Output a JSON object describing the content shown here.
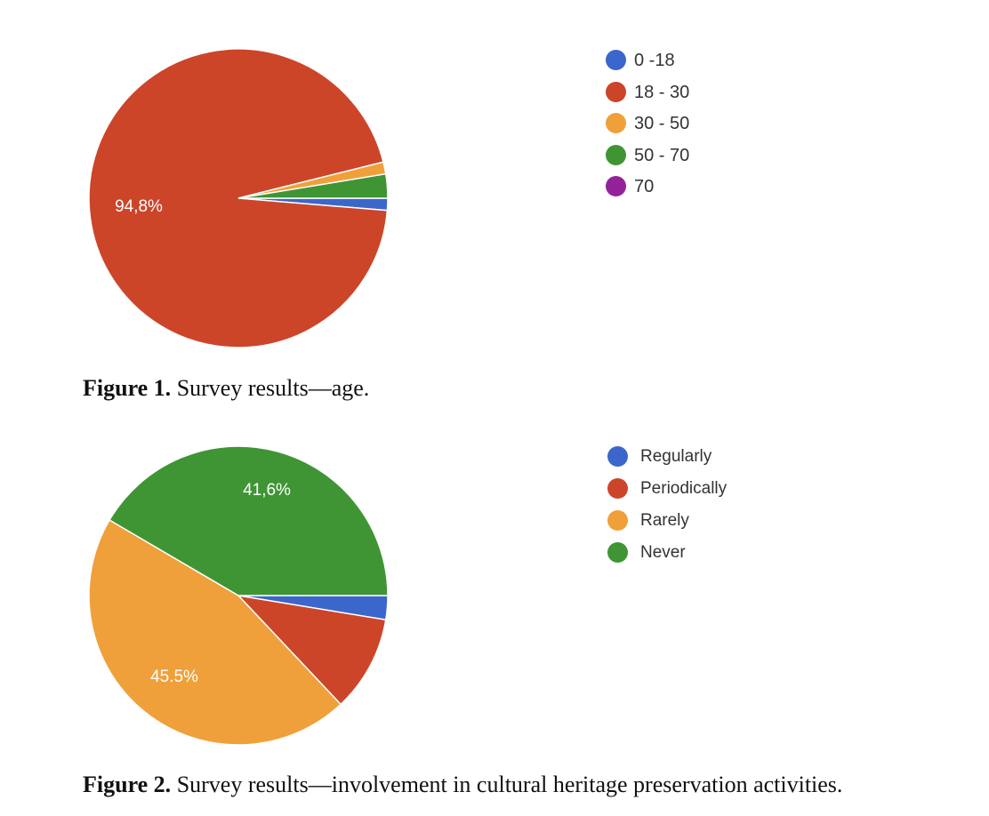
{
  "chart_data": [
    {
      "type": "pie",
      "title": "",
      "legend_position": "right",
      "slices": [
        {
          "label": "0 -18",
          "value": 1.3,
          "color": "#3b66cc"
        },
        {
          "label": "18 - 30",
          "value": 94.8,
          "color": "#cc4529"
        },
        {
          "label": "30 - 50",
          "value": 1.3,
          "color": "#f0a03a"
        },
        {
          "label": "50 - 70",
          "value": 2.6,
          "color": "#3f9534"
        },
        {
          "label": "70",
          "value": 0,
          "color": "#93229a"
        }
      ],
      "data_labels": [
        {
          "slice": "18 - 30",
          "text": "94,8%"
        }
      ]
    },
    {
      "type": "pie",
      "title": "",
      "legend_position": "right",
      "slices": [
        {
          "label": "Regularly",
          "value": 2.6,
          "color": "#3b66cc"
        },
        {
          "label": "Periodically",
          "value": 10.4,
          "color": "#cc4529"
        },
        {
          "label": "Rarely",
          "value": 45.5,
          "color": "#f0a03a"
        },
        {
          "label": "Never",
          "value": 41.6,
          "color": "#3f9534"
        }
      ],
      "data_labels": [
        {
          "slice": "Rarely",
          "text": "45.5%"
        },
        {
          "slice": "Never",
          "text": "41,6%"
        }
      ]
    }
  ],
  "captions": [
    {
      "label": "Figure 1.",
      "text": " Survey results—age."
    },
    {
      "label": "Figure 2.",
      "text": " Survey results—involvement in cultural heritage preservation activities."
    }
  ]
}
